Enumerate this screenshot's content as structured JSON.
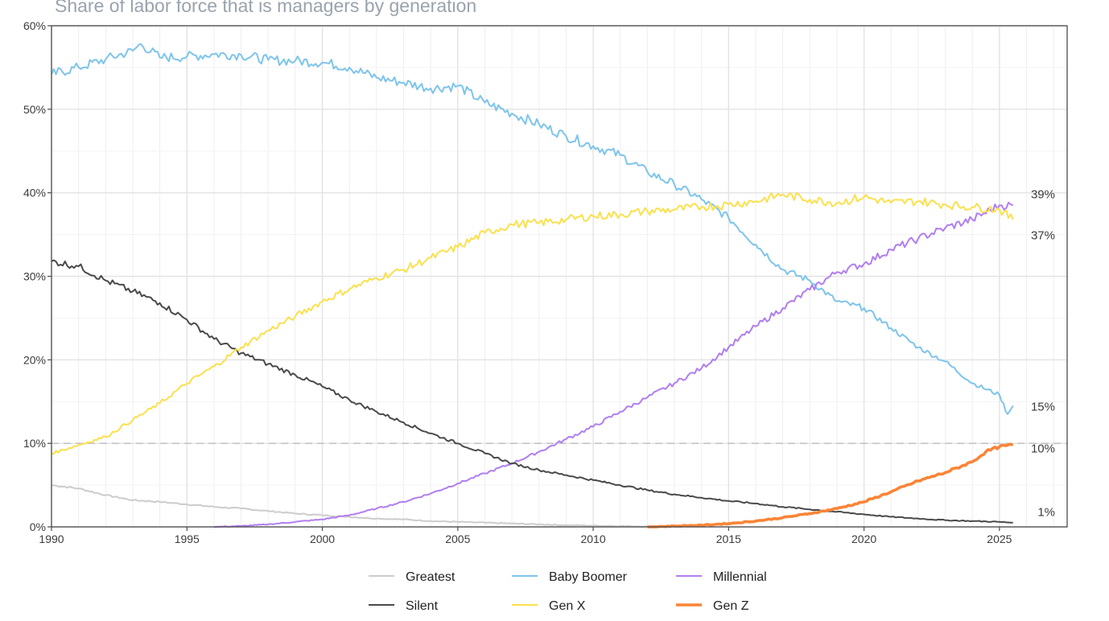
{
  "chart_data": {
    "type": "line",
    "title": "Share of labor force that is managers by generation",
    "xlabel": "",
    "ylabel": "",
    "xlim": [
      1990,
      2027.5
    ],
    "ylim": [
      0,
      60
    ],
    "x_ticks": [
      1990,
      1995,
      2000,
      2005,
      2010,
      2015,
      2020,
      2025
    ],
    "y_ticks": [
      0,
      10,
      20,
      30,
      40,
      50,
      60
    ],
    "y_tick_labels": [
      "0%",
      "10%",
      "20%",
      "30%",
      "40%",
      "50%",
      "60%"
    ],
    "grid": true,
    "legend_position": "bottom",
    "reference_line": {
      "y": 10,
      "style": "dashed"
    },
    "series": [
      {
        "name": "Greatest",
        "color": "#cccccc",
        "points": [
          [
            1990,
            5.0
          ],
          [
            1991,
            4.6
          ],
          [
            1992,
            3.8
          ],
          [
            1993,
            3.2
          ],
          [
            1994,
            3.0
          ],
          [
            1995,
            2.7
          ],
          [
            1996,
            2.4
          ],
          [
            1997,
            2.2
          ],
          [
            1998,
            1.9
          ],
          [
            1999,
            1.6
          ],
          [
            2000,
            1.4
          ],
          [
            2001,
            1.2
          ],
          [
            2002,
            1.0
          ],
          [
            2003,
            0.9
          ],
          [
            2004,
            0.7
          ],
          [
            2005,
            0.6
          ],
          [
            2006,
            0.5
          ],
          [
            2007,
            0.4
          ],
          [
            2008,
            0.3
          ],
          [
            2009,
            0.2
          ],
          [
            2010,
            0.15
          ],
          [
            2011,
            0.1
          ],
          [
            2012,
            0.05
          ],
          [
            2013,
            0.03
          ]
        ]
      },
      {
        "name": "Baby Boomer",
        "color": "#7ec4ec",
        "points": [
          [
            1990,
            54.2
          ],
          [
            1991,
            55.0
          ],
          [
            1992,
            56.0
          ],
          [
            1993,
            57.0
          ],
          [
            1993.3,
            57.8
          ],
          [
            1994,
            56.2
          ],
          [
            1995,
            56.3
          ],
          [
            1996,
            56.6
          ],
          [
            1997,
            56.5
          ],
          [
            1998,
            55.9
          ],
          [
            1999,
            55.8
          ],
          [
            2000,
            55.6
          ],
          [
            2001,
            55.0
          ],
          [
            2002,
            53.8
          ],
          [
            2003,
            53.2
          ],
          [
            2004,
            52.5
          ],
          [
            2005,
            52.8
          ],
          [
            2006,
            50.8
          ],
          [
            2007,
            49.5
          ],
          [
            2008,
            48.2
          ],
          [
            2009,
            46.8
          ],
          [
            2010,
            45.6
          ],
          [
            2011,
            44.5
          ],
          [
            2012,
            42.5
          ],
          [
            2013,
            41.0
          ],
          [
            2014,
            39.2
          ],
          [
            2015,
            37.0
          ],
          [
            2016,
            33.8
          ],
          [
            2017,
            30.8
          ],
          [
            2018,
            29.5
          ],
          [
            2019,
            27.0
          ],
          [
            2020,
            26.2
          ],
          [
            2021,
            23.8
          ],
          [
            2022,
            21.5
          ],
          [
            2023,
            19.8
          ],
          [
            2024,
            17.2
          ],
          [
            2025,
            15.8
          ],
          [
            2025.3,
            13.5
          ],
          [
            2025.5,
            14.5
          ]
        ]
      },
      {
        "name": "Millennial",
        "color": "#b07ef0",
        "points": [
          [
            1996,
            0.0
          ],
          [
            1997,
            0.1
          ],
          [
            1998,
            0.3
          ],
          [
            1999,
            0.6
          ],
          [
            2000,
            0.9
          ],
          [
            2001,
            1.4
          ],
          [
            2002,
            2.2
          ],
          [
            2003,
            3.0
          ],
          [
            2004,
            4.0
          ],
          [
            2005,
            5.2
          ],
          [
            2006,
            6.4
          ],
          [
            2007,
            7.6
          ],
          [
            2008,
            9.0
          ],
          [
            2009,
            10.5
          ],
          [
            2010,
            12.0
          ],
          [
            2011,
            13.8
          ],
          [
            2012,
            15.5
          ],
          [
            2013,
            17.2
          ],
          [
            2014,
            19.0
          ],
          [
            2015,
            21.5
          ],
          [
            2016,
            24.0
          ],
          [
            2017,
            26.2
          ],
          [
            2018,
            28.4
          ],
          [
            2019,
            30.5
          ],
          [
            2020,
            31.5
          ],
          [
            2021,
            33.2
          ],
          [
            2022,
            34.5
          ],
          [
            2023,
            35.8
          ],
          [
            2024,
            36.8
          ],
          [
            2025,
            38.5
          ],
          [
            2025.5,
            38.5
          ]
        ]
      },
      {
        "name": "Silent",
        "color": "#4a4a4a",
        "points": [
          [
            1990,
            31.8
          ],
          [
            1991,
            31.2
          ],
          [
            1992,
            29.5
          ],
          [
            1993,
            28.2
          ],
          [
            1994,
            26.8
          ],
          [
            1995,
            24.8
          ],
          [
            1996,
            22.5
          ],
          [
            1997,
            20.8
          ],
          [
            1998,
            19.5
          ],
          [
            1999,
            18.2
          ],
          [
            2000,
            16.8
          ],
          [
            2001,
            15.2
          ],
          [
            2002,
            13.8
          ],
          [
            2003,
            12.5
          ],
          [
            2004,
            11.2
          ],
          [
            2005,
            10.0
          ],
          [
            2006,
            8.8
          ],
          [
            2007,
            7.6
          ],
          [
            2008,
            6.8
          ],
          [
            2009,
            6.2
          ],
          [
            2010,
            5.6
          ],
          [
            2011,
            5.0
          ],
          [
            2012,
            4.4
          ],
          [
            2013,
            3.9
          ],
          [
            2014,
            3.5
          ],
          [
            2015,
            3.1
          ],
          [
            2016,
            2.8
          ],
          [
            2017,
            2.4
          ],
          [
            2018,
            2.1
          ],
          [
            2019,
            1.8
          ],
          [
            2020,
            1.5
          ],
          [
            2021,
            1.2
          ],
          [
            2022,
            1.0
          ],
          [
            2023,
            0.8
          ],
          [
            2024,
            0.7
          ],
          [
            2025,
            0.6
          ],
          [
            2025.5,
            0.5
          ]
        ]
      },
      {
        "name": "Gen X",
        "color": "#fbe04e",
        "points": [
          [
            1990,
            8.8
          ],
          [
            1991,
            9.8
          ],
          [
            1992,
            10.8
          ],
          [
            1993,
            12.8
          ],
          [
            1994,
            14.8
          ],
          [
            1995,
            17.2
          ],
          [
            1996,
            19.2
          ],
          [
            1997,
            21.5
          ],
          [
            1998,
            23.5
          ],
          [
            1999,
            25.2
          ],
          [
            2000,
            27.0
          ],
          [
            2001,
            28.5
          ],
          [
            2002,
            29.8
          ],
          [
            2003,
            30.8
          ],
          [
            2004,
            32.2
          ],
          [
            2005,
            33.5
          ],
          [
            2006,
            35.2
          ],
          [
            2007,
            36.2
          ],
          [
            2008,
            36.4
          ],
          [
            2009,
            36.8
          ],
          [
            2010,
            37.2
          ],
          [
            2011,
            37.4
          ],
          [
            2012,
            37.8
          ],
          [
            2013,
            38.0
          ],
          [
            2014,
            38.3
          ],
          [
            2015,
            38.6
          ],
          [
            2016,
            39.0
          ],
          [
            2017,
            39.8
          ],
          [
            2018,
            39.2
          ],
          [
            2019,
            38.8
          ],
          [
            2020,
            39.5
          ],
          [
            2021,
            38.8
          ],
          [
            2022,
            39.0
          ],
          [
            2023,
            38.6
          ],
          [
            2024,
            38.3
          ],
          [
            2025,
            38.0
          ],
          [
            2025.5,
            36.8
          ]
        ]
      },
      {
        "name": "Gen Z",
        "color": "#fb8436",
        "points": [
          [
            2012,
            0.0
          ],
          [
            2013,
            0.1
          ],
          [
            2014,
            0.2
          ],
          [
            2015,
            0.4
          ],
          [
            2016,
            0.7
          ],
          [
            2017,
            1.1
          ],
          [
            2018,
            1.6
          ],
          [
            2019,
            2.2
          ],
          [
            2020,
            3.0
          ],
          [
            2021,
            4.2
          ],
          [
            2022,
            5.5
          ],
          [
            2023,
            6.5
          ],
          [
            2024,
            7.8
          ],
          [
            2024.5,
            9.0
          ],
          [
            2025,
            9.6
          ],
          [
            2025.5,
            9.8
          ]
        ]
      }
    ],
    "end_labels": [
      {
        "text": "39%",
        "y": 39.8
      },
      {
        "text": "37%",
        "y": 34.9
      },
      {
        "text": "15%",
        "y": 14.4
      },
      {
        "text": "10%",
        "y": 9.4
      },
      {
        "text": "1%",
        "y": 1.8
      }
    ],
    "legend": {
      "rows": [
        [
          "Greatest",
          "Baby Boomer",
          "Millennial"
        ],
        [
          "Silent",
          "Gen X",
          "Gen Z"
        ]
      ]
    }
  }
}
